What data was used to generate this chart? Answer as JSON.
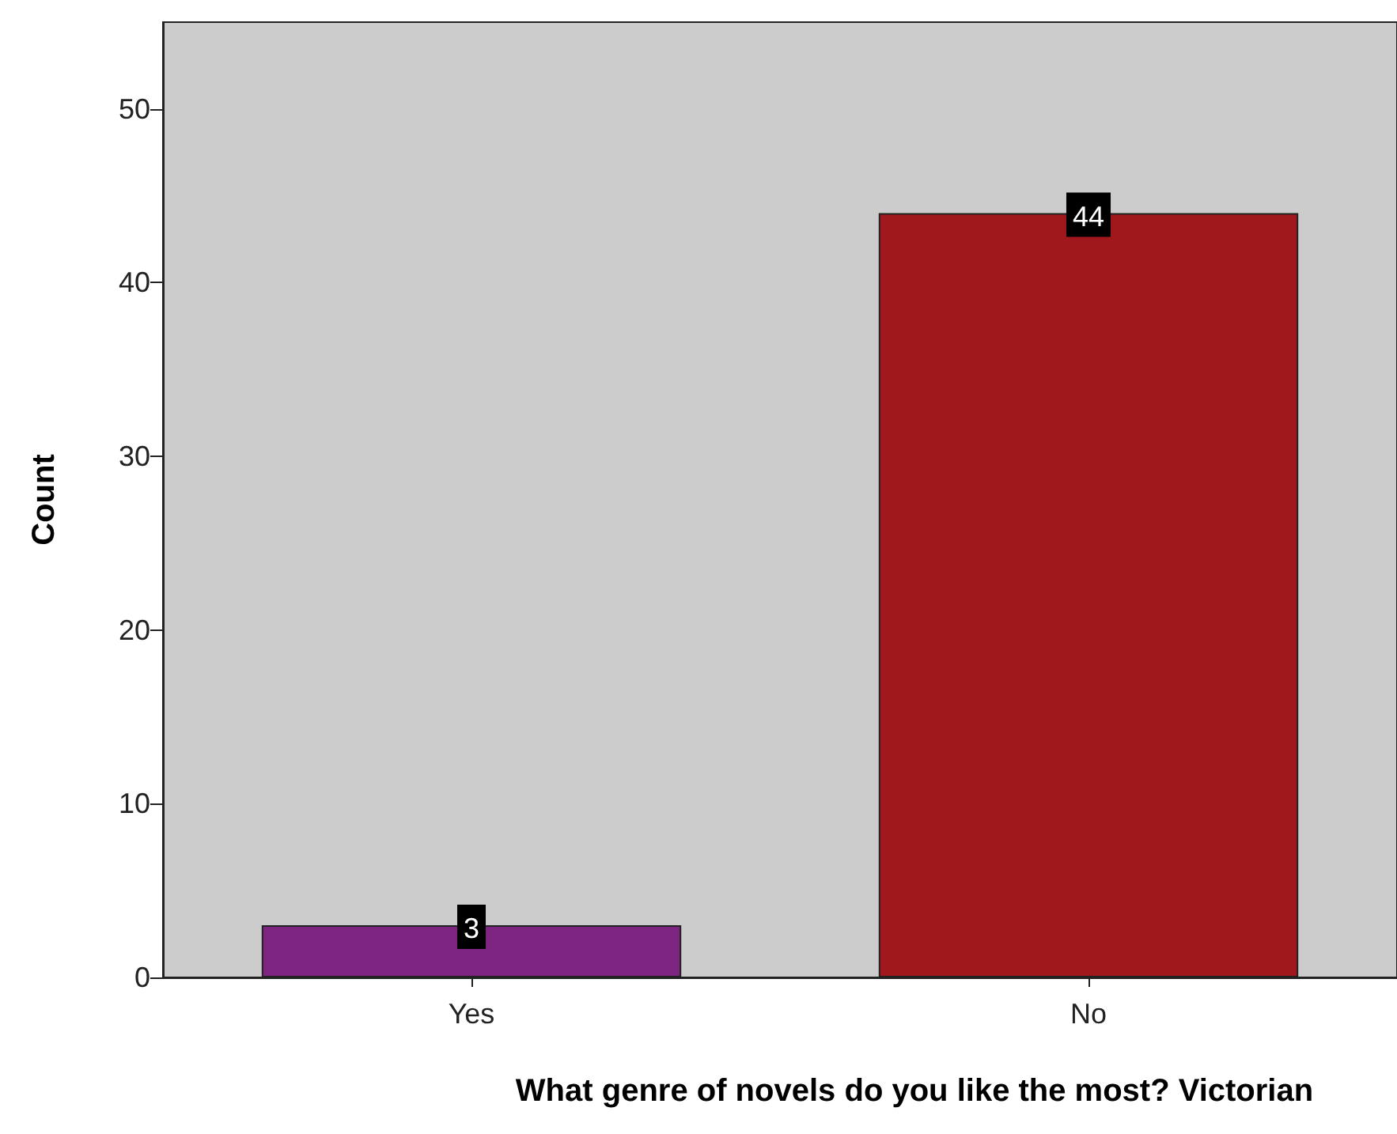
{
  "chart_data": {
    "type": "bar",
    "xlabel": "What genre of novels do you like the most? Victorian",
    "ylabel": "Count",
    "categories": [
      "Yes",
      "No"
    ],
    "values": [
      3,
      44
    ],
    "colors": [
      "#7d2580",
      "#a0171c"
    ],
    "ylim": [
      0,
      55
    ],
    "yticks": [
      0,
      10,
      20,
      30,
      40,
      50
    ],
    "grid": false,
    "data_labels": true
  }
}
